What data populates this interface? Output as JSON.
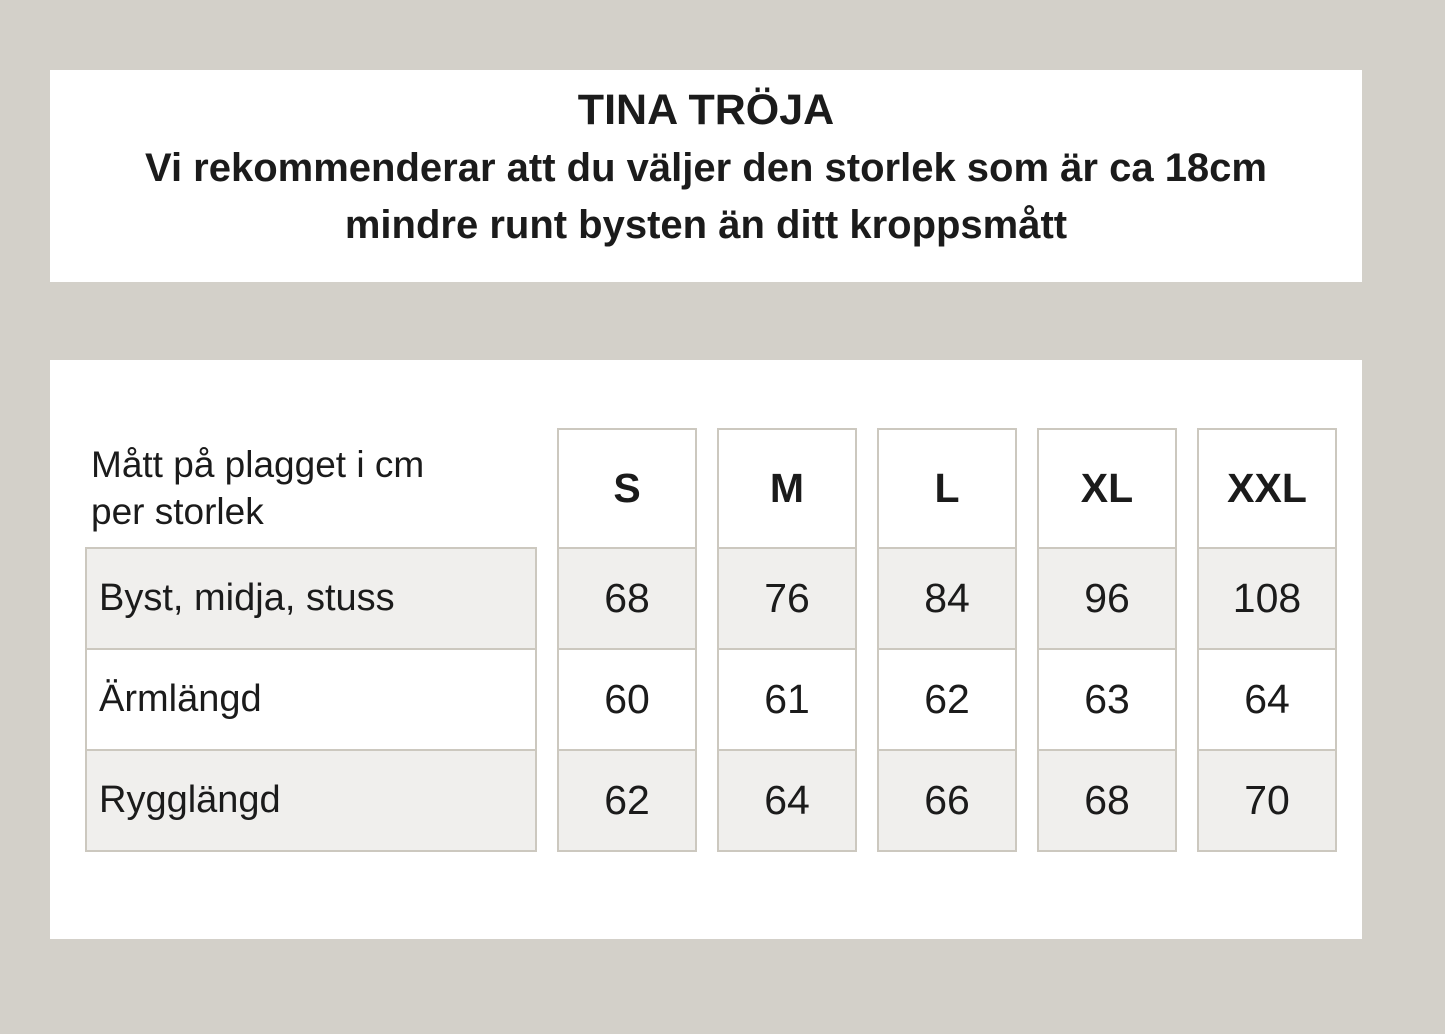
{
  "header": {
    "title": "TINA TRÖJA",
    "subtitle": "Vi rekommenderar att du väljer den storlek som är ca 18cm\nmindre runt bysten än ditt kroppsmått"
  },
  "table": {
    "corner_label": "Mått på plagget i cm\nper storlek",
    "sizes": [
      "S",
      "M",
      "L",
      "XL",
      "XXL"
    ],
    "rows": [
      {
        "label": "Byst, midja, stuss",
        "values": [
          68,
          76,
          84,
          96,
          108
        ]
      },
      {
        "label": "Ärmlängd",
        "values": [
          60,
          61,
          62,
          63,
          64
        ]
      },
      {
        "label": "Rygglängd",
        "values": [
          62,
          64,
          66,
          68,
          70
        ]
      }
    ]
  },
  "colors": {
    "page_background": "#d3d0c9",
    "panel_background": "#ffffff",
    "cell_border": "#ccc8bf",
    "shaded_cell": "#f0efed",
    "text": "#1b1b1b"
  }
}
